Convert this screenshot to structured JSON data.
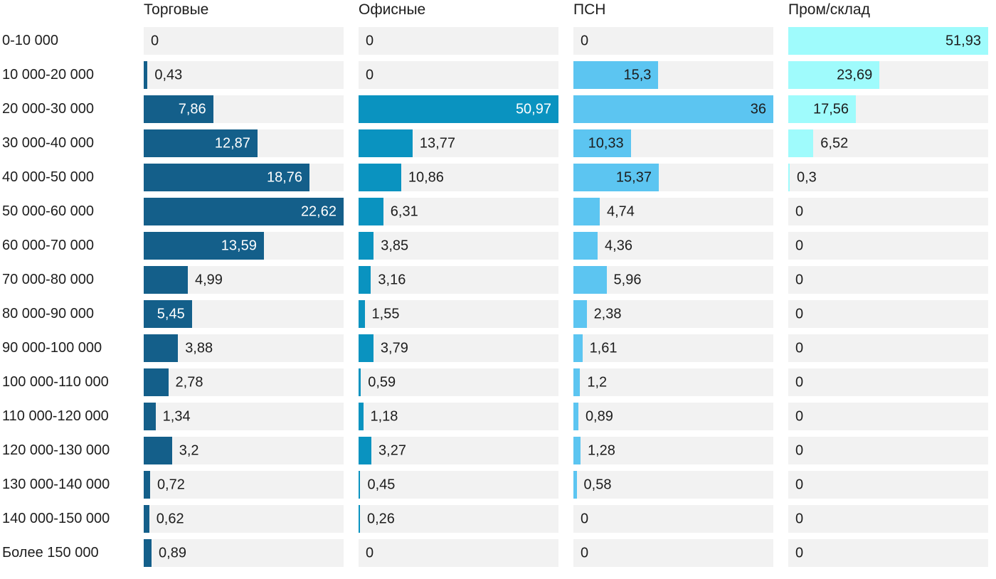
{
  "chart_data": {
    "type": "bar",
    "orientation": "horizontal",
    "scaling": "per-series-max",
    "grid": false,
    "legend_position": "column-headers-top",
    "value_format": "comma-decimal",
    "track_color": "#f2f2f2",
    "background_color": "#ffffff",
    "text_color": "#1d1d1d",
    "categories": [
      "0-10 000",
      "10 000-20 000",
      "20 000-30 000",
      "30 000-40 000",
      "40 000-50 000",
      "50 000-60 000",
      "60 000-70 000",
      "70 000-80 000",
      "80 000-90 000",
      "90 000-100 000",
      "100 000-110 000",
      "110 000-120 000",
      "120 000-130 000",
      "130 000-140 000",
      "140 000-150 000",
      "Более 150 000"
    ],
    "series": [
      {
        "name": "Торговые",
        "color": "#145f8a",
        "inside_label_color": "#ffffff",
        "values": [
          0,
          0.43,
          7.86,
          12.87,
          18.76,
          22.62,
          13.59,
          4.99,
          5.45,
          3.88,
          2.78,
          1.34,
          3.2,
          0.72,
          0.62,
          0.89
        ]
      },
      {
        "name": "Офисные",
        "color": "#0a93c0",
        "inside_label_color": "#ffffff",
        "values": [
          0,
          0,
          50.97,
          13.77,
          10.86,
          6.31,
          3.85,
          3.16,
          1.55,
          3.79,
          0.59,
          1.18,
          3.27,
          0.45,
          0.26,
          0
        ]
      },
      {
        "name": "ПСН",
        "color": "#5cc5f1",
        "inside_label_color": "#1d1d1d",
        "values": [
          0,
          15.3,
          36,
          10.33,
          15.37,
          4.74,
          4.36,
          5.96,
          2.38,
          1.61,
          1.2,
          0.89,
          1.28,
          0.58,
          0,
          0
        ]
      },
      {
        "name": "Пром/склад",
        "color": "#9ffbfc",
        "inside_label_color": "#1d1d1d",
        "values": [
          51.93,
          23.69,
          17.56,
          6.52,
          0.3,
          0,
          0,
          0,
          0,
          0,
          0,
          0,
          0,
          0,
          0,
          0
        ]
      }
    ]
  }
}
